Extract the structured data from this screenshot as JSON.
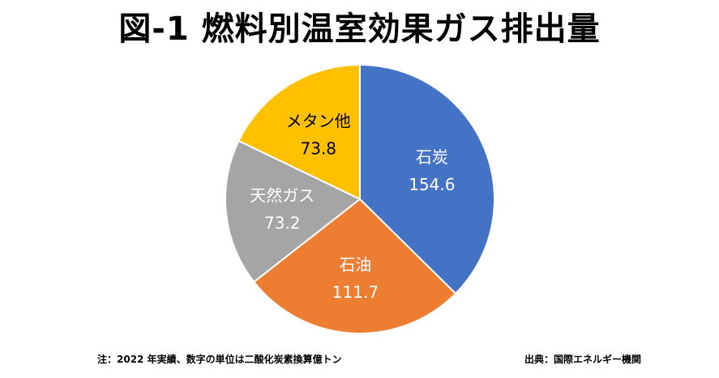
{
  "title": "図-1 燃料別温室効果ガス排出量",
  "note_left": "注：2022 年実績、数字の単位は二酸化炭素換算億トン",
  "note_right": "出典：国際エネルギー機関",
  "chart_data": {
    "type": "pie",
    "title": "図-1 燃料別温室効果ガス排出量",
    "start_angle_deg": 0,
    "direction": "clockwise",
    "slices": [
      {
        "label": "石炭",
        "value": 154.6,
        "value_text": "154.6",
        "color": "#4472C4",
        "text_color": "#FFFFFF"
      },
      {
        "label": "石油",
        "value": 111.7,
        "value_text": "111.7",
        "color": "#ED7D31",
        "text_color": "#FFFFFF"
      },
      {
        "label": "天然ガス",
        "value": 73.2,
        "value_text": "73.2",
        "color": "#A5A5A5",
        "text_color": "#FFFFFF"
      },
      {
        "label": "メタン他",
        "value": 73.8,
        "value_text": "73.8",
        "color": "#FFC000",
        "text_color": "#000000"
      }
    ]
  }
}
